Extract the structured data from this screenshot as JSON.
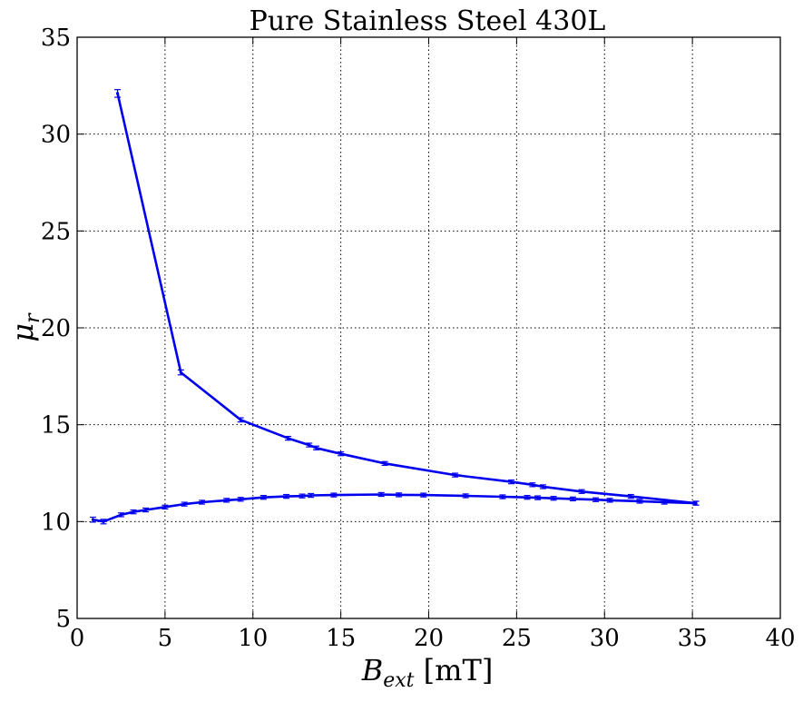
{
  "chart_data": {
    "type": "line",
    "title": "Pure Stainless Steel 430L",
    "xlabel": "B_ext [mT]",
    "ylabel": "μ_r",
    "xlim": [
      0,
      40
    ],
    "ylim": [
      5,
      35
    ],
    "xticks": [
      0,
      5,
      10,
      15,
      20,
      25,
      30,
      35,
      40
    ],
    "yticks": [
      5,
      10,
      15,
      20,
      25,
      30,
      35
    ],
    "grid": true,
    "line_color": "#0000ee",
    "series": [
      {
        "x": [
          2.3,
          5.9,
          9.3,
          12.0,
          13.2,
          13.6,
          15.0,
          17.5,
          21.5,
          24.7,
          25.9,
          26.5,
          28.7,
          31.5,
          35.2
        ],
        "y": [
          32.1,
          17.7,
          15.25,
          14.3,
          13.95,
          13.8,
          13.5,
          13.0,
          12.4,
          12.05,
          11.9,
          11.8,
          11.55,
          11.3,
          10.95
        ],
        "yerr": [
          0.15,
          0.08,
          0.06,
          0.05,
          0.05,
          0.05,
          0.05,
          0.05,
          0.05,
          0.05,
          0.05,
          0.05,
          0.05,
          0.05,
          0.05
        ]
      },
      {
        "x": [
          0.9,
          1.5,
          2.5,
          3.2,
          3.9,
          5.0,
          6.1,
          7.1,
          8.5,
          9.3,
          10.6,
          11.9,
          12.8,
          13.3,
          14.6,
          17.3,
          18.3,
          19.7,
          22.1,
          24.2,
          25.6,
          26.2,
          27.1,
          28.2,
          29.5,
          30.3,
          32.0,
          33.4,
          35.2
        ],
        "y": [
          10.1,
          10.0,
          10.35,
          10.5,
          10.6,
          10.75,
          10.9,
          11.0,
          11.1,
          11.15,
          11.25,
          11.3,
          11.32,
          11.35,
          11.37,
          11.4,
          11.38,
          11.37,
          11.33,
          11.28,
          11.25,
          11.23,
          11.2,
          11.17,
          11.13,
          11.1,
          11.05,
          11.0,
          10.95
        ],
        "yerr": [
          0.08,
          0.07,
          0.05,
          0.05,
          0.05,
          0.05,
          0.05,
          0.05,
          0.05,
          0.05,
          0.05,
          0.05,
          0.05,
          0.05,
          0.05,
          0.05,
          0.05,
          0.05,
          0.05,
          0.05,
          0.05,
          0.05,
          0.05,
          0.05,
          0.05,
          0.05,
          0.05,
          0.05,
          0.05
        ]
      }
    ]
  }
}
